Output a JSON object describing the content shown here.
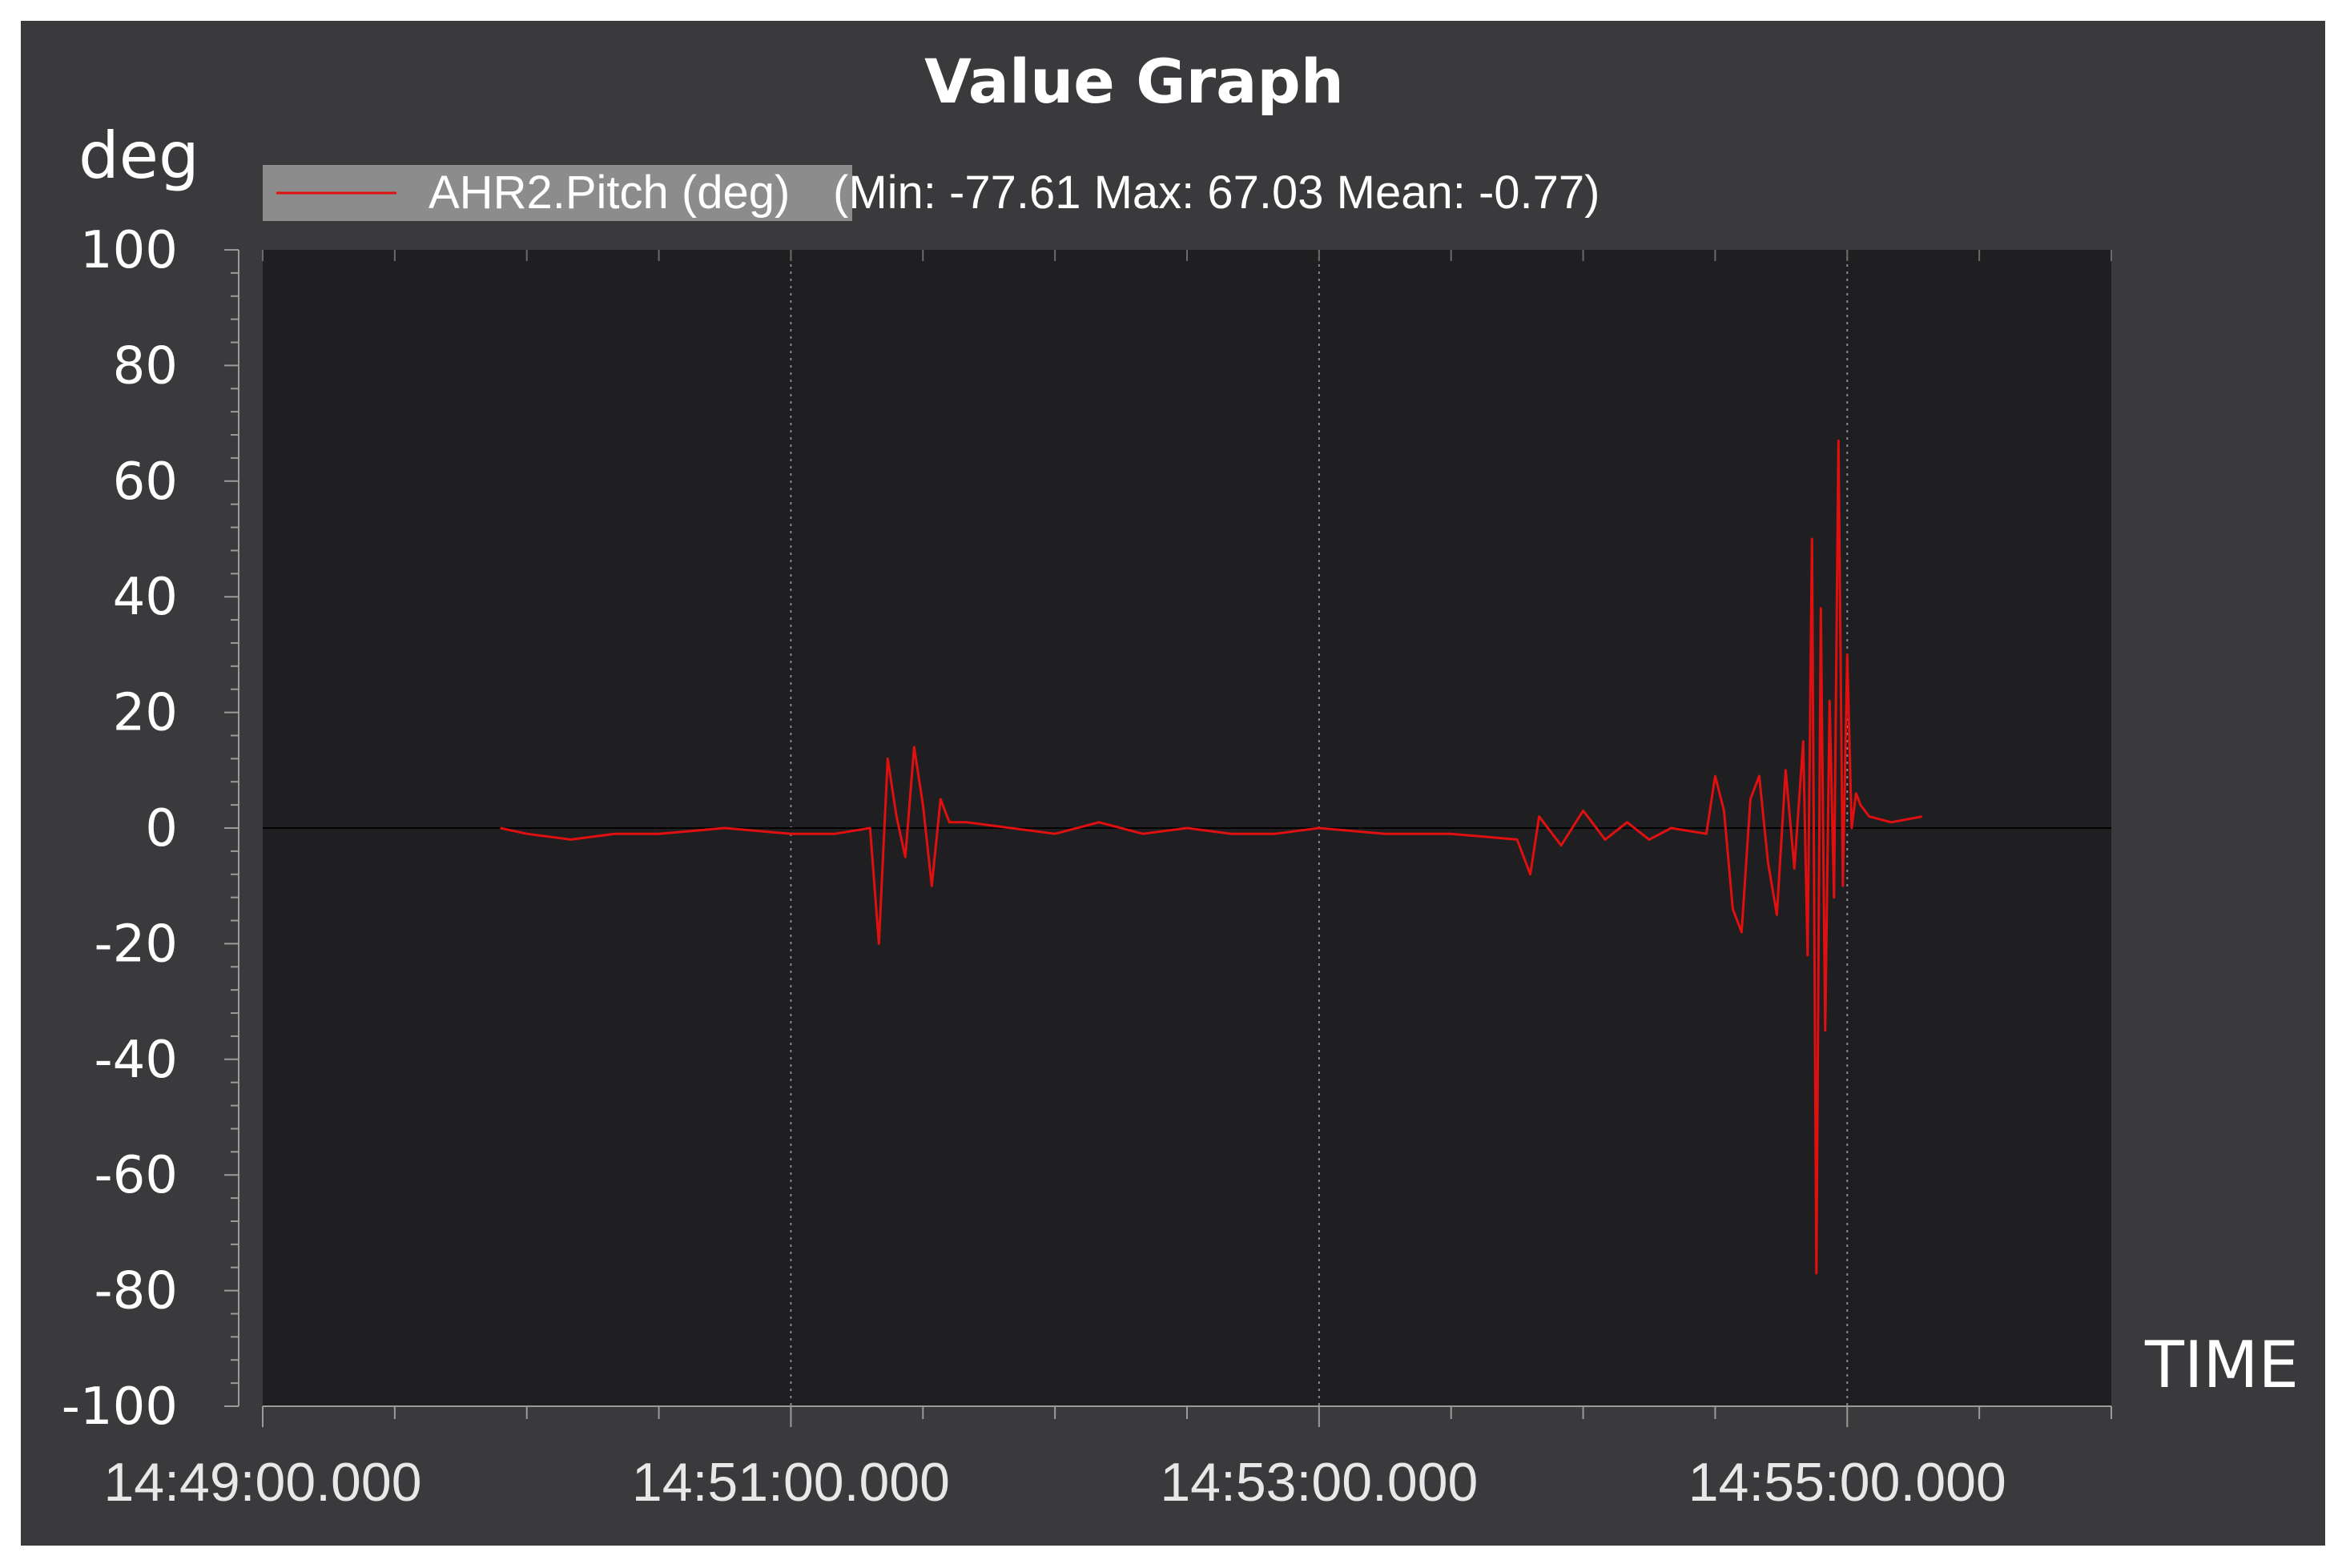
{
  "chart_data": {
    "type": "line",
    "title": "Value Graph",
    "ylabel": "deg",
    "xlabel": "TIME",
    "ylim": [
      -100,
      100
    ],
    "y_ticks": [
      "100",
      "80",
      "60",
      "40",
      "20",
      "0",
      "-20",
      "-40",
      "-60",
      "-80",
      "-100"
    ],
    "y_tick_values": [
      100,
      80,
      60,
      40,
      20,
      0,
      -20,
      -40,
      -60,
      -80,
      -100
    ],
    "x_ticks": [
      "14:49:00.000",
      "14:51:00.000",
      "14:53:00.000",
      "14:55:00.000"
    ],
    "xlim": [
      "14:49:00.000",
      "14:56:00.000"
    ],
    "grid": "vertical dotted",
    "legend_placement": "top-left",
    "series": [
      {
        "name": "AHR2.Pitch (deg)",
        "legend_stats": "(Min: -77.61 Max: 67.03 Mean: -0.77)",
        "color": "#e01010",
        "x": [
          "14:49:54",
          "14:50:00",
          "14:50:10",
          "14:50:20",
          "14:50:30",
          "14:50:45",
          "14:51:00",
          "14:51:10",
          "14:51:18",
          "14:51:20",
          "14:51:22",
          "14:51:24",
          "14:51:26",
          "14:51:28",
          "14:51:30",
          "14:51:32",
          "14:51:34",
          "14:51:36",
          "14:51:40",
          "14:51:50",
          "14:52:00",
          "14:52:10",
          "14:52:20",
          "14:52:30",
          "14:52:40",
          "14:52:50",
          "14:53:00",
          "14:53:15",
          "14:53:30",
          "14:53:45",
          "14:53:48",
          "14:53:50",
          "14:53:55",
          "14:54:00",
          "14:54:05",
          "14:54:10",
          "14:54:15",
          "14:54:20",
          "14:54:28",
          "14:54:30",
          "14:54:32",
          "14:54:34",
          "14:54:36",
          "14:54:38",
          "14:54:40",
          "14:54:42",
          "14:54:44",
          "14:54:46",
          "14:54:48",
          "14:54:50",
          "14:54:51",
          "14:54:52",
          "14:54:53",
          "14:54:54",
          "14:54:55",
          "14:54:56",
          "14:54:57",
          "14:54:58",
          "14:54:59",
          "14:55:00",
          "14:55:01",
          "14:55:02",
          "14:55:03",
          "14:55:05",
          "14:55:10",
          "14:55:17"
        ],
        "values": [
          0,
          -1,
          -2,
          -1,
          -1,
          0,
          -1,
          -1,
          0,
          -20,
          12,
          2,
          -5,
          14,
          4,
          -10,
          5,
          1,
          1,
          0,
          -1,
          1,
          -1,
          0,
          -1,
          -1,
          0,
          -1,
          -1,
          -2,
          -8,
          2,
          -3,
          3,
          -2,
          1,
          -2,
          0,
          -1,
          9,
          3,
          -14,
          -18,
          5,
          9,
          -6,
          -15,
          10,
          -7,
          15,
          -22,
          50,
          -77,
          38,
          -35,
          22,
          -12,
          67,
          -10,
          30,
          0,
          6,
          4,
          2,
          1,
          2
        ]
      }
    ]
  }
}
